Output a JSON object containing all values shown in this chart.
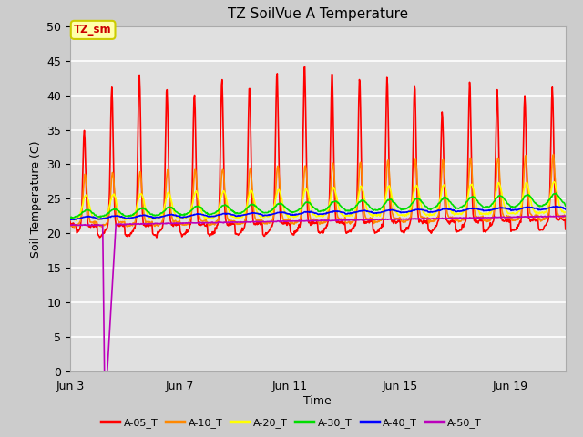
{
  "title": "TZ SoilVue A Temperature",
  "xlabel": "Time",
  "ylabel": "Soil Temperature (C)",
  "ylim": [
    0,
    50
  ],
  "yticks": [
    0,
    5,
    10,
    15,
    20,
    25,
    30,
    35,
    40,
    45,
    50
  ],
  "xlim": [
    3,
    21
  ],
  "xtick_labels": [
    "Jun 3",
    "Jun 7",
    "Jun 11",
    "Jun 15",
    "Jun 19"
  ],
  "xtick_positions": [
    3,
    7,
    11,
    15,
    19
  ],
  "legend_labels": [
    "A-05_T",
    "A-10_T",
    "A-20_T",
    "A-30_T",
    "A-40_T",
    "A-50_T"
  ],
  "legend_colors": [
    "#ff0000",
    "#ff8800",
    "#ffff00",
    "#00dd00",
    "#0000ff",
    "#bb00bb"
  ],
  "annotation_text": "TZ_sm",
  "annotation_color": "#cc0000",
  "annotation_bg": "#ffffaa",
  "annotation_border": "#cccc00",
  "background_color": "#cccccc",
  "plot_bg_color": "#e0e0e0",
  "grid_color": "#ffffff",
  "title_fontsize": 11,
  "axis_label_fontsize": 9,
  "tick_fontsize": 9,
  "linewidth": 1.2
}
